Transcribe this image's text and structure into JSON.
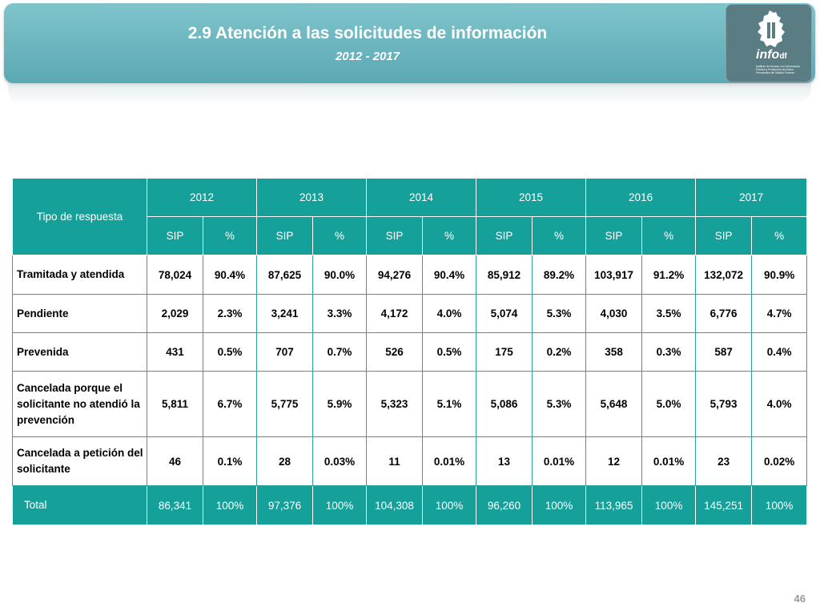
{
  "header": {
    "title": "2.9 Atención a las solicitudes de información",
    "subtitle": "2012 - 2017",
    "logo_text": "info",
    "logo_suffix": "df",
    "logo_fine_print": "Instituto de Acceso a la Información Pública y Protección de Datos Personales del Distrito Federal"
  },
  "table": {
    "row_header_label": "Tipo de respuesta",
    "years": [
      "2012",
      "2013",
      "2014",
      "2015",
      "2016",
      "2017"
    ],
    "sub_headers": [
      "SIP",
      "%"
    ],
    "rows": [
      {
        "label": "Tramitada y atendida",
        "values": [
          "78,024",
          "90.4%",
          "87,625",
          "90.0%",
          "94,276",
          "90.4%",
          "85,912",
          "89.2%",
          "103,917",
          "91.2%",
          "132,072",
          "90.9%"
        ]
      },
      {
        "label": "Pendiente",
        "values": [
          "2,029",
          "2.3%",
          "3,241",
          "3.3%",
          "4,172",
          "4.0%",
          "5,074",
          "5.3%",
          "4,030",
          "3.5%",
          "6,776",
          "4.7%"
        ]
      },
      {
        "label": "Prevenida",
        "values": [
          "431",
          "0.5%",
          "707",
          "0.7%",
          "526",
          "0.5%",
          "175",
          "0.2%",
          "358",
          "0.3%",
          "587",
          "0.4%"
        ]
      },
      {
        "label": "Cancelada porque el solicitante no atendió la prevención",
        "values": [
          "5,811",
          "6.7%",
          "5,775",
          "5.9%",
          "5,323",
          "5.1%",
          "5,086",
          "5.3%",
          "5,648",
          "5.0%",
          "5,793",
          "4.0%"
        ]
      },
      {
        "label": "Cancelada a petición del solicitante",
        "values": [
          "46",
          "0.1%",
          "28",
          "0.03%",
          "11",
          "0.01%",
          "13",
          "0.01%",
          "12",
          "0.01%",
          "23",
          "0.02%"
        ]
      }
    ],
    "total": {
      "label": "Total",
      "values": [
        "86,341",
        "100%",
        "97,376",
        "100%",
        "104,308",
        "100%",
        "96,260",
        "100%",
        "113,965",
        "100%",
        "145,251",
        "100%"
      ]
    }
  },
  "page_number": "46",
  "colors": {
    "header": "#6fb8c1",
    "table_header": "#16a09a",
    "table_border": "#2aa39d",
    "logo_box": "#5a7d83"
  }
}
